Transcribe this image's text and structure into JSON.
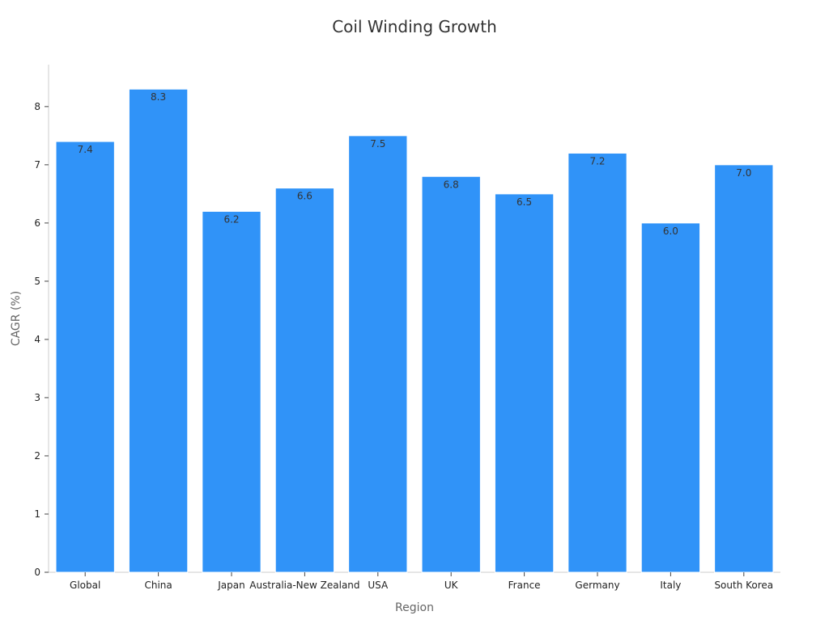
{
  "chart_data": {
    "type": "bar",
    "title": "Coil Winding Growth",
    "xlabel": "Region",
    "ylabel": "CAGR (%)",
    "categories": [
      "Global",
      "China",
      "Japan",
      "Australia-New Zealand",
      "USA",
      "UK",
      "France",
      "Germany",
      "Italy",
      "South Korea"
    ],
    "values": [
      7.4,
      8.3,
      6.2,
      6.6,
      7.5,
      6.8,
      6.5,
      7.2,
      6.0,
      7.0
    ],
    "value_labels": [
      "7.4",
      "8.3",
      "6.2",
      "6.6",
      "7.5",
      "6.8",
      "6.5",
      "7.2",
      "6.0",
      "7.0"
    ],
    "yticks": [
      0,
      1,
      2,
      3,
      4,
      5,
      6,
      7,
      8
    ],
    "ylim": [
      0,
      8.72
    ],
    "grid": false,
    "legend": "none",
    "bar_color": "#3093F8"
  }
}
